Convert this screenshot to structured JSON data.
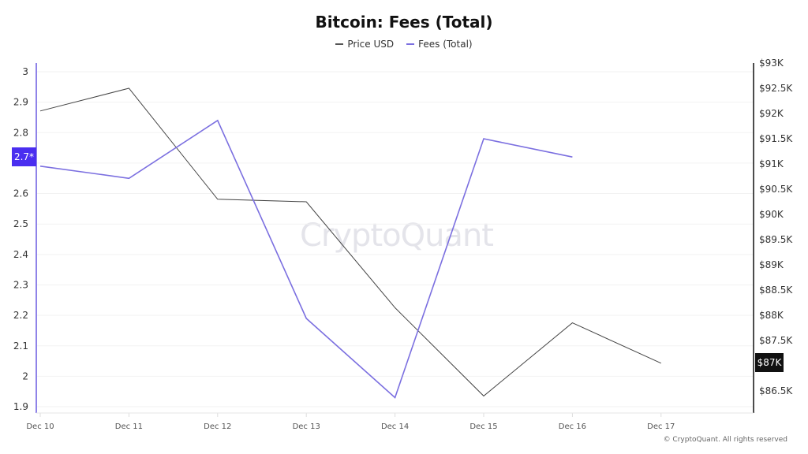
{
  "title": "Bitcoin: Fees (Total)",
  "legend": [
    {
      "label": "Price USD",
      "color": "#555555"
    },
    {
      "label": "Fees (Total)",
      "color": "#7b6fe0"
    }
  ],
  "watermark": "CryptoQuant",
  "footer": "© CryptoQuant. All rights reserved",
  "crosshair": {
    "left_label": "2.7*",
    "right_label": "$87K"
  },
  "colors": {
    "price": "#444444",
    "fees": "#7b6fe0",
    "left_axis": "#6a5ae0",
    "right_axis": "#111111",
    "grid": "#f0f0f0",
    "badge_left": "#4a2ef0",
    "badge_right": "#111111"
  },
  "chart_data": {
    "type": "line",
    "title": "Bitcoin: Fees (Total)",
    "categories": [
      "Dec 10",
      "Dec 11",
      "Dec 12",
      "Dec 13",
      "Dec 14",
      "Dec 15",
      "Dec 16",
      "Dec 17"
    ],
    "series": [
      {
        "name": "Price USD",
        "axis": "right",
        "values": [
          92050,
          92500,
          90300,
          90250,
          88150,
          86400,
          87850,
          87050
        ]
      },
      {
        "name": "Fees (Total)",
        "axis": "left",
        "values": [
          2.69,
          2.65,
          2.84,
          2.19,
          1.93,
          2.78,
          2.72,
          null
        ]
      }
    ],
    "left_axis": {
      "ticks": [
        "3",
        "2.9",
        "2.8",
        "2.7",
        "2.6",
        "2.5",
        "2.4",
        "2.3",
        "2.2",
        "2.1",
        "2",
        "1.9"
      ],
      "range": [
        1.88,
        3.03
      ]
    },
    "right_axis": {
      "ticks": [
        "$93K",
        "$92.5K",
        "$92K",
        "$91.5K",
        "$91K",
        "$90.5K",
        "$90K",
        "$89.5K",
        "$89K",
        "$88.5K",
        "$88K",
        "$87.5K",
        "$87K",
        "$86.5K"
      ],
      "range": [
        86380,
        93000
      ]
    },
    "xlabel": "",
    "ylabel_left": "Fees (Total)",
    "ylabel_right": "Price USD",
    "grid": true,
    "legend_position": "top"
  }
}
